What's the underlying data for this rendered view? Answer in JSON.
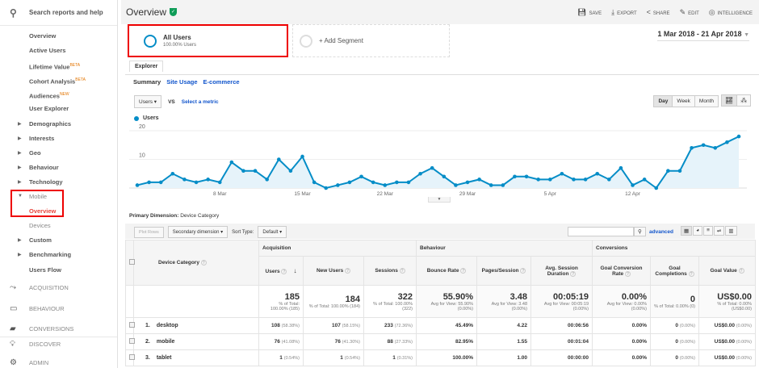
{
  "sidebar": {
    "search": "Search reports and help",
    "items": [
      {
        "label": "Overview"
      },
      {
        "label": "Active Users"
      },
      {
        "label": "Lifetime Value",
        "badge": "BETA"
      },
      {
        "label": "Cohort Analysis",
        "badge": "BETA"
      },
      {
        "label": "Audiences",
        "badge": "NEW"
      },
      {
        "label": "User Explorer"
      },
      {
        "label": "Demographics"
      },
      {
        "label": "Interests"
      },
      {
        "label": "Geo"
      },
      {
        "label": "Behaviour"
      },
      {
        "label": "Technology"
      },
      {
        "label": "Mobile"
      },
      {
        "label": "Overview"
      },
      {
        "label": "Devices"
      },
      {
        "label": "Custom"
      },
      {
        "label": "Benchmarking"
      },
      {
        "label": "Users Flow"
      }
    ],
    "sections": [
      "ACQUISITION",
      "BEHAVIOUR",
      "CONVERSIONS",
      "DISCOVER",
      "ADMIN"
    ]
  },
  "header": {
    "title": "Overview",
    "actions": [
      "SAVE",
      "EXPORT",
      "SHARE",
      "EDIT",
      "INTELLIGENCE"
    ]
  },
  "segments": {
    "active_name": "All Users",
    "active_sub": "100.00% Users",
    "add": "+ Add Segment"
  },
  "date_range": "1 Mar 2018 - 21 Apr 2018",
  "tabs": {
    "explorer": "Explorer",
    "summary": "Summary",
    "site_usage": "Site Usage",
    "ecommerce": "E-commerce"
  },
  "controls": {
    "metric": "Users",
    "vs": "VS",
    "select_metric": "Select a metric",
    "day": "Day",
    "week": "Week",
    "month": "Month"
  },
  "chart_data": {
    "type": "area",
    "series": [
      {
        "name": "Users",
        "color": "#058dc7",
        "values": [
          1,
          2,
          2,
          5,
          3,
          2,
          3,
          2,
          9,
          6,
          6,
          3,
          10,
          6,
          11,
          2,
          0,
          1,
          2,
          4,
          2,
          1,
          2,
          2,
          5,
          7,
          4,
          1,
          2,
          3,
          1,
          1,
          4,
          4,
          3,
          3,
          5,
          3,
          3,
          5,
          3,
          7,
          1,
          3,
          0,
          6,
          6,
          14,
          15,
          14,
          16,
          18
        ]
      }
    ],
    "x_start": "1 Mar 2018",
    "x_ticks": [
      {
        "index": 7,
        "label": "8 Mar"
      },
      {
        "index": 14,
        "label": "15 Mar"
      },
      {
        "index": 21,
        "label": "22 Mar"
      },
      {
        "index": 28,
        "label": "29 Mar"
      },
      {
        "index": 35,
        "label": "5 Apr"
      },
      {
        "index": 42,
        "label": "12 Apr"
      }
    ],
    "y_ticks": [
      10,
      20
    ],
    "ylim": [
      0,
      20
    ],
    "legend": "top-left"
  },
  "primary_dimension": {
    "label": "Primary Dimension:",
    "value": "Device Category"
  },
  "toolbar": {
    "plot_rows": "Plot Rows",
    "secondary": "Secondary dimension",
    "sort_type": "Sort Type:",
    "sort_value": "Default",
    "advanced": "advanced"
  },
  "table": {
    "groups": [
      "Acquisition",
      "Behaviour",
      "Conversions"
    ],
    "headers": [
      "Device Category",
      "Users",
      "New Users",
      "Sessions",
      "Bounce Rate",
      "Pages/Session",
      "Avg. Session Duration",
      "Goal Conversion Rate",
      "Goal Completions",
      "Goal Value"
    ],
    "totals": [
      {
        "v": "185",
        "s": "% of Total: 100.00% (185)"
      },
      {
        "v": "184",
        "s": "% of Total: 100.00% (184)"
      },
      {
        "v": "322",
        "s": "% of Total: 100.00% (322)"
      },
      {
        "v": "55.90%",
        "s": "Avg for View: 55.90% (0.00%)"
      },
      {
        "v": "3.48",
        "s": "Avg for View: 3.48 (0.00%)"
      },
      {
        "v": "00:05:19",
        "s": "Avg for View: 00:05:19 (0.00%)"
      },
      {
        "v": "0.00%",
        "s": "Avg for View: 0.00% (0.00%)"
      },
      {
        "v": "0",
        "s": "% of Total: 0.00% (0)"
      },
      {
        "v": "US$0.00",
        "s": "% of Total: 0.00% (US$0.00)"
      }
    ],
    "rows": [
      {
        "n": "1.",
        "name": "desktop",
        "cells": [
          [
            "108",
            "(58.38%)"
          ],
          [
            "107",
            "(58.15%)"
          ],
          [
            "233",
            "(72.36%)"
          ],
          [
            "45.49%",
            ""
          ],
          [
            "4.22",
            ""
          ],
          [
            "00:06:56",
            ""
          ],
          [
            "0.00%",
            ""
          ],
          [
            "0",
            "(0.00%)"
          ],
          [
            "US$0.00",
            "(0.00%)"
          ]
        ]
      },
      {
        "n": "2.",
        "name": "mobile",
        "cells": [
          [
            "76",
            "(41.08%)"
          ],
          [
            "76",
            "(41.30%)"
          ],
          [
            "88",
            "(27.33%)"
          ],
          [
            "82.95%",
            ""
          ],
          [
            "1.55",
            ""
          ],
          [
            "00:01:04",
            ""
          ],
          [
            "0.00%",
            ""
          ],
          [
            "0",
            "(0.00%)"
          ],
          [
            "US$0.00",
            "(0.00%)"
          ]
        ]
      },
      {
        "n": "3.",
        "name": "tablet",
        "cells": [
          [
            "1",
            "(0.54%)"
          ],
          [
            "1",
            "(0.54%)"
          ],
          [
            "1",
            "(0.31%)"
          ],
          [
            "100.00%",
            ""
          ],
          [
            "1.00",
            ""
          ],
          [
            "00:00:00",
            ""
          ],
          [
            "0.00%",
            ""
          ],
          [
            "0",
            "(0.00%)"
          ],
          [
            "US$0.00",
            "(0.00%)"
          ]
        ]
      }
    ]
  }
}
